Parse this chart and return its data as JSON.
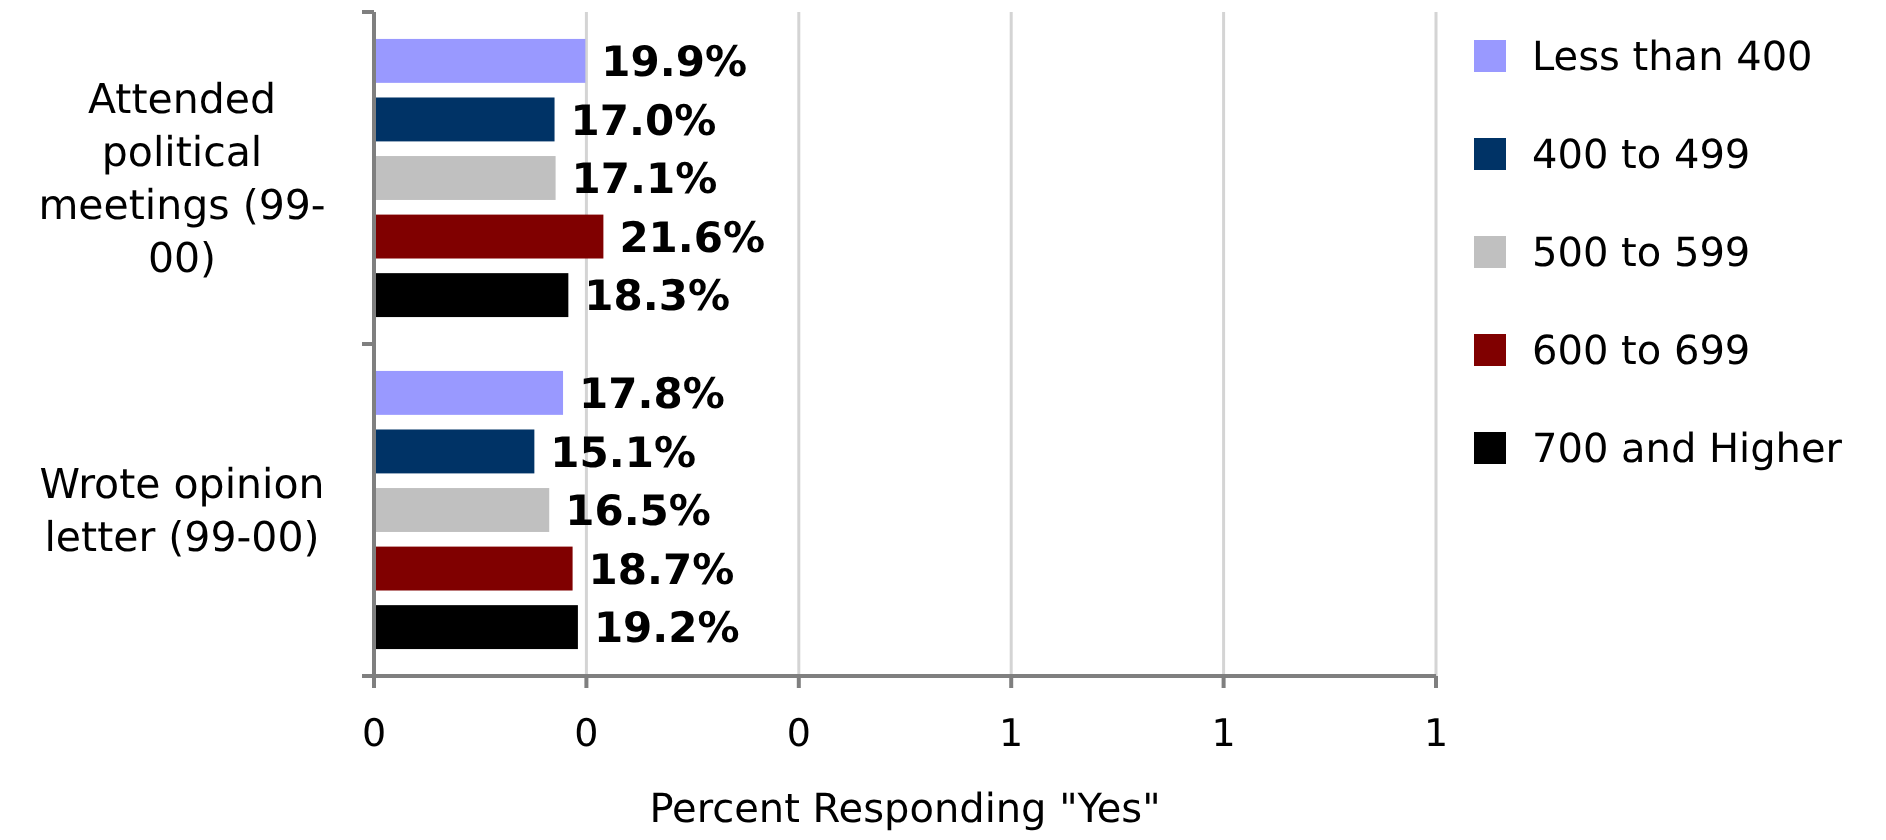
{
  "chart_data": {
    "type": "bar",
    "orientation": "horizontal",
    "categories": [
      "Attended political meetings (99-00)",
      "Wrote opinion letter (99-00)"
    ],
    "series": [
      {
        "name": "Less than 400",
        "color": "#9999ff",
        "values": [
          0.199,
          0.178
        ],
        "value_labels": [
          "19.9%",
          "17.8%"
        ]
      },
      {
        "name": "400 to 499",
        "color": "#003366",
        "values": [
          0.17,
          0.151
        ],
        "value_labels": [
          "17.0%",
          "15.1%"
        ]
      },
      {
        "name": "500 to 599",
        "color": "#c0c0c0",
        "values": [
          0.171,
          0.165
        ],
        "value_labels": [
          "17.1%",
          "16.5%"
        ]
      },
      {
        "name": "600 to 699",
        "color": "#800000",
        "values": [
          0.216,
          0.187
        ],
        "value_labels": [
          "21.6%",
          "18.7%"
        ]
      },
      {
        "name": "700 and Higher",
        "color": "#000000",
        "values": [
          0.183,
          0.192
        ],
        "value_labels": [
          "18.3%",
          "19.2%"
        ]
      }
    ],
    "xlabel": "Percent Responding \"Yes\"",
    "xlim": [
      0,
      1
    ],
    "xticks": [
      0,
      {
        "value": 0.2,
        "label": "0"
      },
      {
        "value": 0.4,
        "label": "0"
      },
      {
        "value": 0.6,
        "label": "1"
      },
      {
        "value": 0.8,
        "label": "1"
      },
      1
    ],
    "grid": "x",
    "legend": "right"
  }
}
